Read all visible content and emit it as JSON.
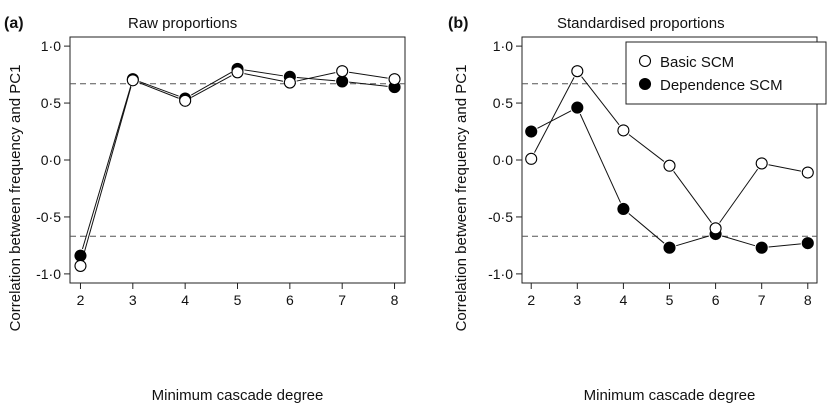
{
  "chart_data": [
    {
      "type": "line",
      "panel_label": "(a)",
      "title": "Raw proportions",
      "xlabel": "Minimum cascade degree",
      "ylabel": "Correlation between frequency and PC1",
      "x": [
        2,
        3,
        4,
        5,
        6,
        7,
        8
      ],
      "xticks": [
        "2",
        "3",
        "4",
        "5",
        "6",
        "7",
        "8"
      ],
      "yticks": [
        -1.0,
        -0.5,
        0.0,
        0.5,
        1.0
      ],
      "ytick_labels": [
        "-1·0",
        "-0·5",
        "0·0",
        "0·5",
        "1·0"
      ],
      "xlim": [
        1.8,
        8.2
      ],
      "ylim": [
        -1.08,
        1.08
      ],
      "reference_lines": [
        0.67,
        -0.67
      ],
      "series": [
        {
          "marker": "open-circle",
          "values": [
            -0.93,
            0.7,
            0.52,
            0.77,
            0.68,
            0.78,
            0.71
          ]
        },
        {
          "marker": "filled-circle",
          "values": [
            -0.84,
            0.71,
            0.54,
            0.8,
            0.73,
            0.69,
            0.64
          ]
        }
      ]
    },
    {
      "type": "line",
      "panel_label": "(b)",
      "title": "Standardised proportions",
      "xlabel": "Minimum cascade degree",
      "ylabel": "Correlation between frequency and PC1",
      "x": [
        2,
        3,
        4,
        5,
        6,
        7,
        8
      ],
      "xticks": [
        "2",
        "3",
        "4",
        "5",
        "6",
        "7",
        "8"
      ],
      "yticks": [
        -1.0,
        -0.5,
        0.0,
        0.5,
        1.0
      ],
      "ytick_labels": [
        "-1·0",
        "-0·5",
        "0·0",
        "0·5",
        "1·0"
      ],
      "xlim": [
        1.8,
        8.2
      ],
      "ylim": [
        -1.08,
        1.08
      ],
      "reference_lines": [
        0.67,
        -0.67
      ],
      "legend_position": "top-right",
      "series": [
        {
          "name": "Basic SCM",
          "marker": "open-circle",
          "values": [
            0.01,
            0.78,
            0.26,
            -0.05,
            -0.6,
            -0.03,
            -0.11
          ]
        },
        {
          "name": "Dependence SCM",
          "marker": "filled-circle",
          "values": [
            0.25,
            0.46,
            -0.43,
            -0.77,
            -0.65,
            -0.77,
            -0.73
          ]
        }
      ]
    }
  ]
}
